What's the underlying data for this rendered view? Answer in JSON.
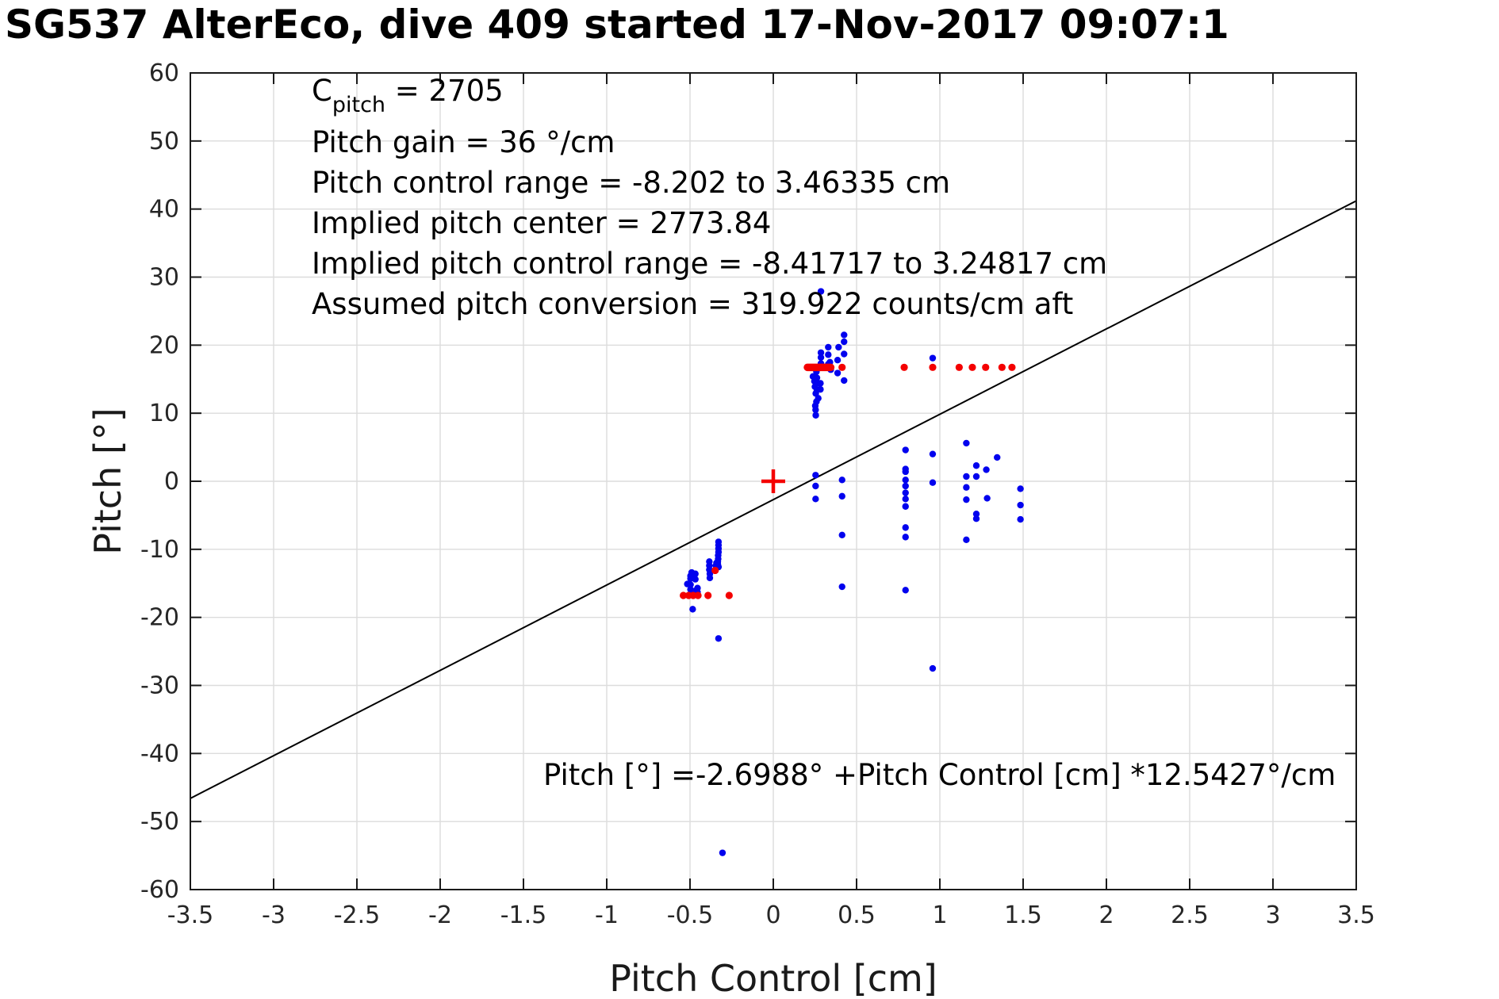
{
  "title": "SG537 AlterEco, dive 409 started 17-Nov-2017 09:07:1",
  "chart_data": {
    "type": "scatter",
    "xlabel": "Pitch Control [cm]",
    "ylabel": "Pitch [°]",
    "xlim": [
      -3.5,
      3.5
    ],
    "ylim": [
      -60,
      60
    ],
    "xtick_step": 0.5,
    "ytick_step": 10,
    "grid": true,
    "legend": "none",
    "colors": {
      "observed_points": "#0202ee",
      "commanded_points": "#f40000",
      "fit_line": "#000000",
      "grid_line": "#dcdcdc",
      "axis_box": "#1a1a1a",
      "tick_label": "#262626"
    },
    "annotations": {
      "cpitch": {
        "base": "C",
        "sub": "pitch",
        "rest": " = 2705"
      },
      "lines": [
        "Pitch gain = 36 °/cm",
        "Pitch control range = -8.202 to 3.46335 cm",
        "Implied pitch center = 2773.84",
        "Implied pitch control range = -8.41717 to 3.24817 cm",
        "Assumed pitch conversion = 319.922 counts/cm aft"
      ],
      "fit_equation": "Pitch [°] =-2.6988° +Pitch Control [cm] *12.5427°/cm"
    },
    "fit_line": {
      "intercept_deg": -2.6988,
      "slope_deg_per_cm": 12.5427,
      "x_start": -3.5,
      "x_end": 3.5
    },
    "red_dash": {
      "x1": 0.205,
      "x2": 0.345,
      "y": 16.74
    },
    "origin_plus": {
      "x": 0,
      "y": 0
    },
    "series": [
      {
        "name": "observed-pitch",
        "marker": "dot",
        "color": "#0202ee",
        "points": [
          [
            0.286,
            27.9
          ],
          [
            0.957,
            18.1
          ],
          [
            0.425,
            21.5
          ],
          [
            0.425,
            20.5
          ],
          [
            0.392,
            19.7
          ],
          [
            0.425,
            18.7
          ],
          [
            0.386,
            17.8
          ],
          [
            0.386,
            15.9
          ],
          [
            0.425,
            14.8
          ],
          [
            0.33,
            19.7
          ],
          [
            0.33,
            18.6
          ],
          [
            0.34,
            17.5
          ],
          [
            0.33,
            17.2
          ],
          [
            0.345,
            16.4
          ],
          [
            0.286,
            18.9
          ],
          [
            0.286,
            18.2
          ],
          [
            0.286,
            17.3
          ],
          [
            0.259,
            16.1
          ],
          [
            0.238,
            15.4
          ],
          [
            0.262,
            15.2
          ],
          [
            0.247,
            14.7
          ],
          [
            0.272,
            14.4
          ],
          [
            0.283,
            14.4
          ],
          [
            0.25,
            13.9
          ],
          [
            0.262,
            13.4
          ],
          [
            0.283,
            13.5
          ],
          [
            0.255,
            12.9
          ],
          [
            0.27,
            12.2
          ],
          [
            0.259,
            11.7
          ],
          [
            0.252,
            11.1
          ],
          [
            0.254,
            10.5
          ],
          [
            0.255,
            9.7
          ],
          [
            0.254,
            0.9
          ],
          [
            0.254,
            -0.7
          ],
          [
            0.254,
            -2.6
          ],
          [
            0.413,
            0.2
          ],
          [
            0.413,
            -2.2
          ],
          [
            0.413,
            -7.9
          ],
          [
            0.413,
            -15.5
          ],
          [
            0.794,
            4.6
          ],
          [
            0.794,
            1.8
          ],
          [
            0.794,
            1.4
          ],
          [
            0.794,
            0.2
          ],
          [
            0.794,
            -0.7
          ],
          [
            0.794,
            -1.7
          ],
          [
            0.794,
            -2.6
          ],
          [
            0.794,
            -3.7
          ],
          [
            0.794,
            -6.8
          ],
          [
            0.794,
            -8.2
          ],
          [
            0.794,
            -16.0
          ],
          [
            0.957,
            4.0
          ],
          [
            0.957,
            -0.2
          ],
          [
            0.957,
            -27.5
          ],
          [
            1.159,
            5.6
          ],
          [
            1.219,
            2.3
          ],
          [
            1.159,
            0.7
          ],
          [
            1.219,
            0.7
          ],
          [
            1.159,
            -0.9
          ],
          [
            1.159,
            -2.7
          ],
          [
            1.159,
            -8.6
          ],
          [
            1.279,
            1.7
          ],
          [
            1.284,
            -2.5
          ],
          [
            1.219,
            -4.8
          ],
          [
            1.219,
            -5.5
          ],
          [
            1.344,
            3.5
          ],
          [
            1.484,
            -1.1
          ],
          [
            1.484,
            -3.5
          ],
          [
            1.484,
            -5.6
          ],
          [
            -0.329,
            -8.9
          ],
          [
            -0.329,
            -9.4
          ],
          [
            -0.329,
            -9.9
          ],
          [
            -0.329,
            -10.4
          ],
          [
            -0.331,
            -10.9
          ],
          [
            -0.331,
            -11.4
          ],
          [
            -0.333,
            -11.8
          ],
          [
            -0.333,
            -12.2
          ],
          [
            -0.341,
            -12.0
          ],
          [
            -0.345,
            -12.4
          ],
          [
            -0.329,
            -12.6
          ],
          [
            -0.384,
            -11.8
          ],
          [
            -0.384,
            -12.4
          ],
          [
            -0.384,
            -13.0
          ],
          [
            -0.381,
            -13.6
          ],
          [
            -0.381,
            -14.2
          ],
          [
            -0.49,
            -13.4
          ],
          [
            -0.468,
            -13.6
          ],
          [
            -0.497,
            -13.9
          ],
          [
            -0.497,
            -14.3
          ],
          [
            -0.468,
            -14.4
          ],
          [
            -0.516,
            -15.1
          ],
          [
            -0.497,
            -15.2
          ],
          [
            -0.455,
            -15.7
          ],
          [
            -0.497,
            -15.9
          ],
          [
            -0.468,
            -16.1
          ],
          [
            -0.455,
            -16.3
          ],
          [
            -0.49,
            -16.6
          ],
          [
            -0.484,
            -18.8
          ],
          [
            -0.329,
            -23.1
          ],
          [
            -0.305,
            -54.6
          ]
        ]
      },
      {
        "name": "commanded-pitch",
        "marker": "dot",
        "color": "#f40000",
        "points": [
          [
            0.413,
            16.74
          ],
          [
            0.786,
            16.74
          ],
          [
            0.957,
            16.74
          ],
          [
            1.116,
            16.74
          ],
          [
            1.195,
            16.74
          ],
          [
            1.275,
            16.74
          ],
          [
            1.373,
            16.74
          ],
          [
            1.433,
            16.74
          ],
          [
            -0.54,
            -16.78
          ],
          [
            -0.508,
            -16.78
          ],
          [
            -0.481,
            -16.78
          ],
          [
            -0.452,
            -16.78
          ],
          [
            -0.392,
            -16.78
          ],
          [
            -0.265,
            -16.78
          ],
          [
            -0.349,
            -13.1
          ]
        ]
      }
    ]
  }
}
